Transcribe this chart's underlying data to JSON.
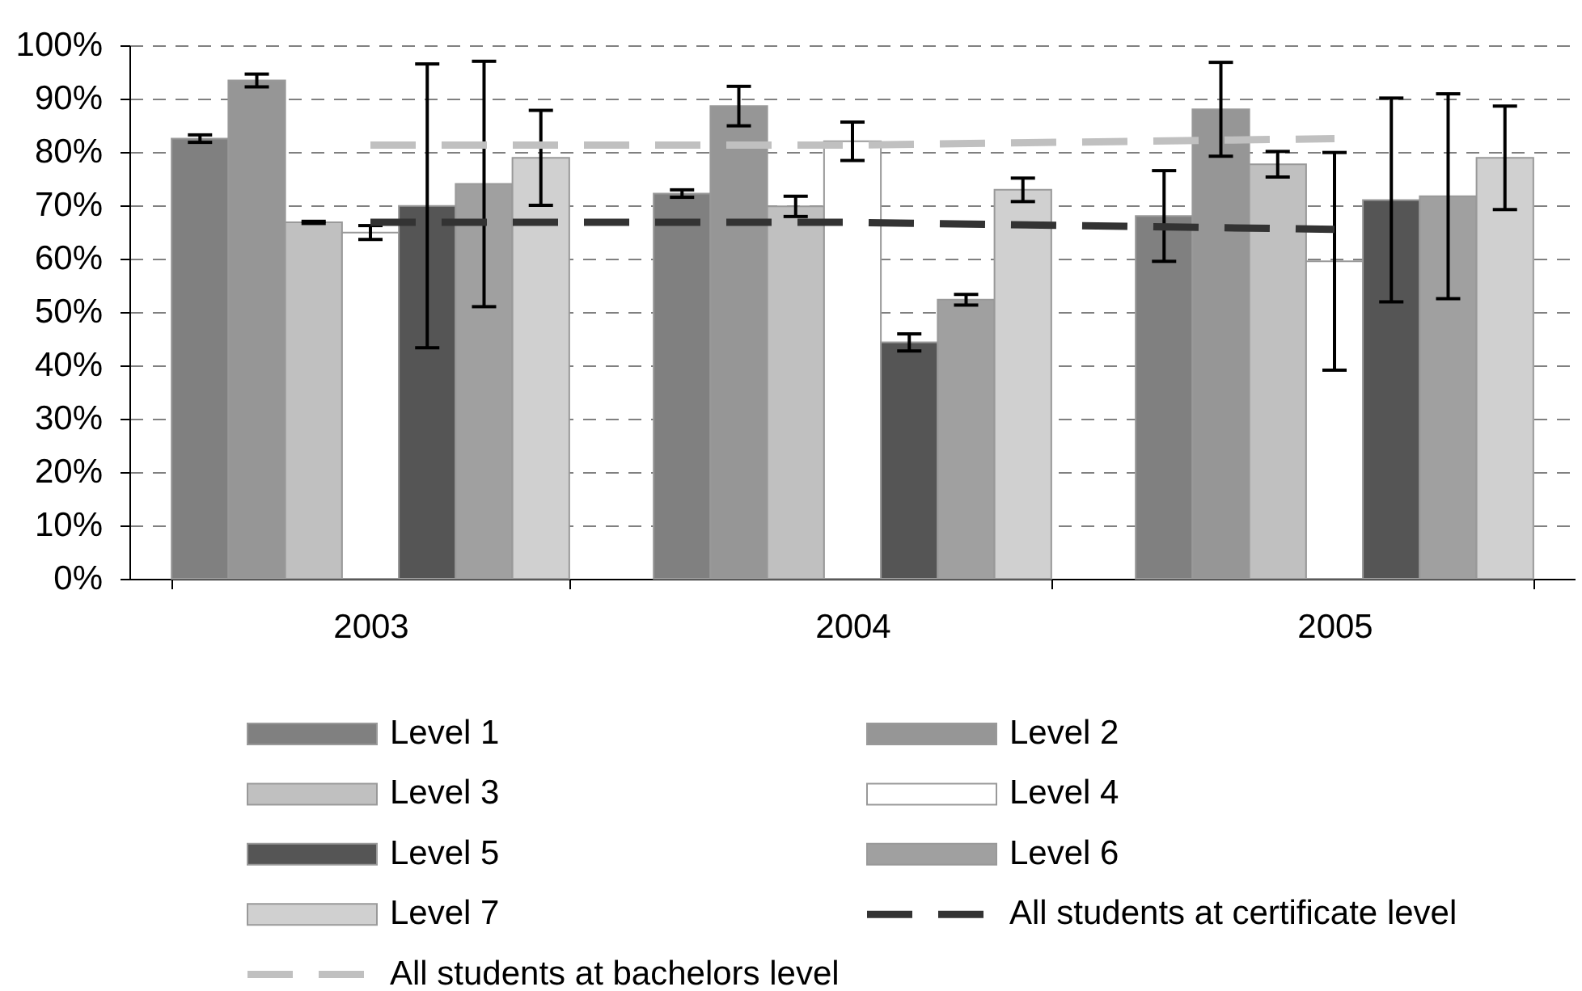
{
  "chart_data": {
    "type": "bar",
    "categories": [
      "2003",
      "2004",
      "2005"
    ],
    "ylim": [
      0,
      100
    ],
    "yticks": [
      {
        "value": 0,
        "label": "0%"
      },
      {
        "value": 10,
        "label": "10%"
      },
      {
        "value": 20,
        "label": "20%"
      },
      {
        "value": 30,
        "label": "30%"
      },
      {
        "value": 40,
        "label": "40%"
      },
      {
        "value": 50,
        "label": "50%"
      },
      {
        "value": 60,
        "label": "60%"
      },
      {
        "value": 70,
        "label": "70%"
      },
      {
        "value": 80,
        "label": "80%"
      },
      {
        "value": 90,
        "label": "90%"
      },
      {
        "value": 100,
        "label": "100%"
      }
    ],
    "grid": "y",
    "legend": "bottom",
    "series": [
      {
        "name": "Level 1",
        "color": "#808080",
        "values": [
          82.5,
          72.2,
          68.0
        ],
        "errors": [
          0.7,
          0.7,
          8.5
        ]
      },
      {
        "name": "Level 2",
        "color": "#969696",
        "values": [
          93.4,
          88.6,
          88.0
        ],
        "errors": [
          1.2,
          3.7,
          8.8
        ]
      },
      {
        "name": "Level 3",
        "color": "#c0c0c0",
        "values": [
          66.8,
          69.8,
          77.7
        ],
        "errors": [
          0.2,
          1.9,
          2.4
        ]
      },
      {
        "name": "Level 4",
        "color": "#ffffff",
        "values": [
          64.9,
          82.0,
          59.5
        ],
        "errors": [
          1.3,
          3.6,
          20.4
        ]
      },
      {
        "name": "Level 5",
        "color": "#555555",
        "values": [
          69.9,
          44.3,
          71.0
        ],
        "errors": [
          26.6,
          1.6,
          19.1
        ]
      },
      {
        "name": "Level 6",
        "color": "#a0a0a0",
        "values": [
          74.0,
          52.3,
          71.7
        ],
        "errors": [
          23.0,
          1.0,
          19.2
        ]
      },
      {
        "name": "Level 7",
        "color": "#d0d0d0",
        "values": [
          78.9,
          72.9,
          78.9
        ],
        "errors": [
          8.9,
          2.2,
          9.7
        ]
      },
      {
        "name": "All students at certificate level",
        "type": "line",
        "color": "#333333",
        "line_style": "dashed",
        "values": [
          66.8,
          66.8,
          65.5
        ]
      },
      {
        "name": "All students at bachelors level",
        "type": "line",
        "color": "#c0c0c0",
        "line_style": "dashed",
        "values": [
          81.3,
          81.3,
          82.5
        ]
      }
    ]
  }
}
